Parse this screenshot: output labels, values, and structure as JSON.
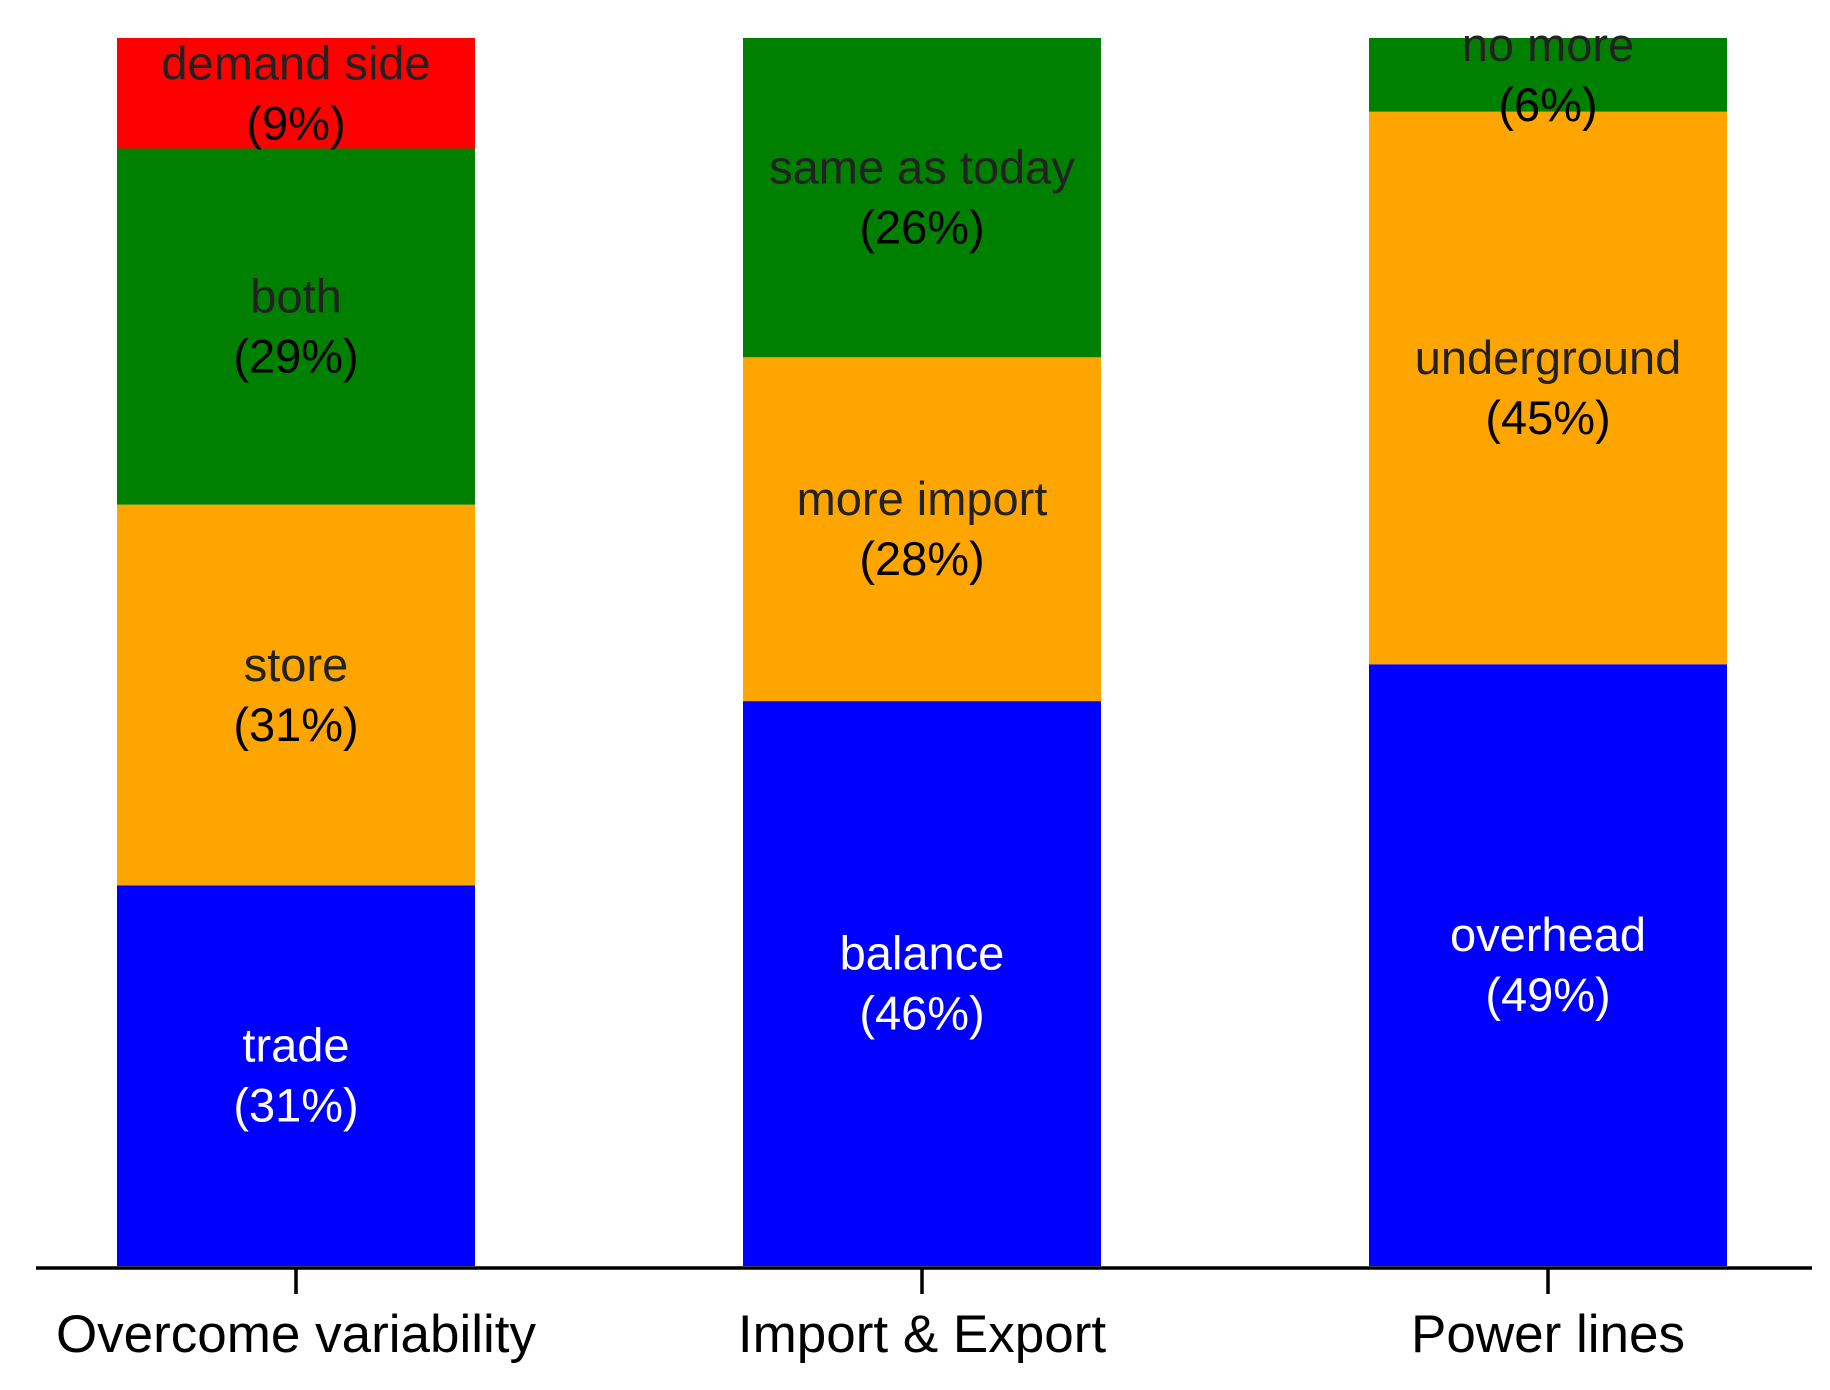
{
  "chart_data": {
    "type": "bar",
    "stacked": true,
    "normalized": true,
    "title": "",
    "xlabel": "",
    "ylabel": "",
    "ylim": [
      0,
      100
    ],
    "grid": false,
    "categories": [
      "Overcome variability",
      "Import & Export",
      "Power lines"
    ],
    "bars": [
      {
        "category": "Overcome variability",
        "segments": [
          {
            "label": "trade",
            "pct_text": "(31%)",
            "value": 31,
            "color": "#0000ff",
            "text_color": "#ffffff"
          },
          {
            "label": "store",
            "pct_text": "(31%)",
            "value": 31,
            "color": "#ffa500",
            "text_color": "#222222"
          },
          {
            "label": "both",
            "pct_text": "(29%)",
            "value": 29,
            "color": "#008000",
            "text_color": "#222222"
          },
          {
            "label": "demand side",
            "pct_text": "(9%)",
            "value": 9,
            "color": "#ff0000",
            "text_color": "#222222"
          }
        ]
      },
      {
        "category": "Import & Export",
        "segments": [
          {
            "label": "balance",
            "pct_text": "(46%)",
            "value": 46,
            "color": "#0000ff",
            "text_color": "#ffffff"
          },
          {
            "label": "more import",
            "pct_text": "(28%)",
            "value": 28,
            "color": "#ffa500",
            "text_color": "#222222"
          },
          {
            "label": "same as today",
            "pct_text": "(26%)",
            "value": 26,
            "color": "#008000",
            "text_color": "#222222"
          }
        ]
      },
      {
        "category": "Power lines",
        "segments": [
          {
            "label": "overhead",
            "pct_text": "(49%)",
            "value": 49,
            "color": "#0000ff",
            "text_color": "#ffffff"
          },
          {
            "label": "underground",
            "pct_text": "(45%)",
            "value": 45,
            "color": "#ffa500",
            "text_color": "#222222"
          },
          {
            "label": "no more",
            "pct_text": "(6%)",
            "value": 6,
            "color": "#008000",
            "text_color": "#222222"
          }
        ]
      }
    ]
  }
}
